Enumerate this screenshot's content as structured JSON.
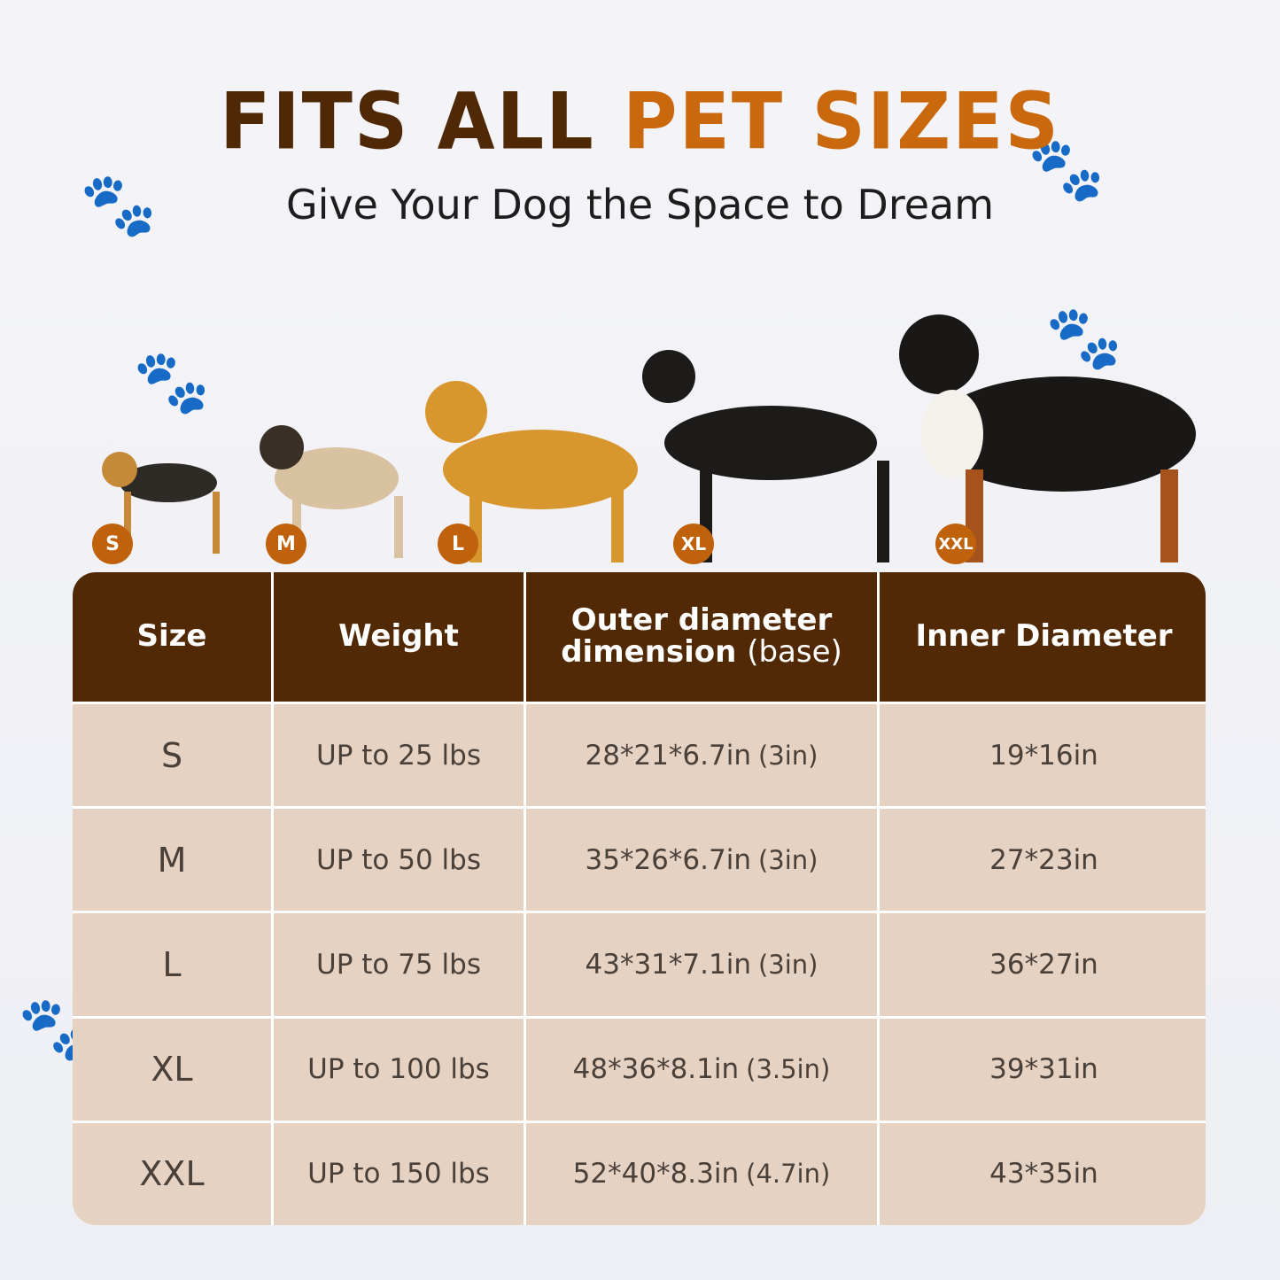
{
  "title": {
    "part1": "FITS ALL",
    "part2": "PET SIZES"
  },
  "subtitle": "Give Your Dog the Space to Dream",
  "colors": {
    "title_dark": "#4f2806",
    "title_accent": "#c9680c",
    "header_bg": "#522905",
    "cell_bg": "#e5d2c2",
    "badge": "#c0620c"
  },
  "badges": [
    "S",
    "M",
    "L",
    "XL",
    "XXL"
  ],
  "table": {
    "headers": {
      "size": "Size",
      "weight": "Weight",
      "outer_line1": "Outer diameter",
      "outer_line2": "dimension",
      "outer_note": "(base)",
      "inner": "Inner Diameter"
    },
    "rows": [
      {
        "size": "S",
        "weight": "UP to 25 lbs",
        "outer": "28*21*6.7in",
        "base": "(3in)",
        "inner": "19*16in"
      },
      {
        "size": "M",
        "weight": "UP to 50 lbs",
        "outer": "35*26*6.7in",
        "base": "(3in)",
        "inner": "27*23in"
      },
      {
        "size": "L",
        "weight": "UP to 75 lbs",
        "outer": "43*31*7.1in",
        "base": "(3in)",
        "inner": "36*27in"
      },
      {
        "size": "XL",
        "weight": "UP to 100 lbs",
        "outer": "48*36*8.1in",
        "base": "(3.5in)",
        "inner": "39*31in"
      },
      {
        "size": "XXL",
        "weight": "UP to 150 lbs",
        "outer": "52*40*8.3in",
        "base": "(4.7in)",
        "inner": "43*35in"
      }
    ]
  }
}
